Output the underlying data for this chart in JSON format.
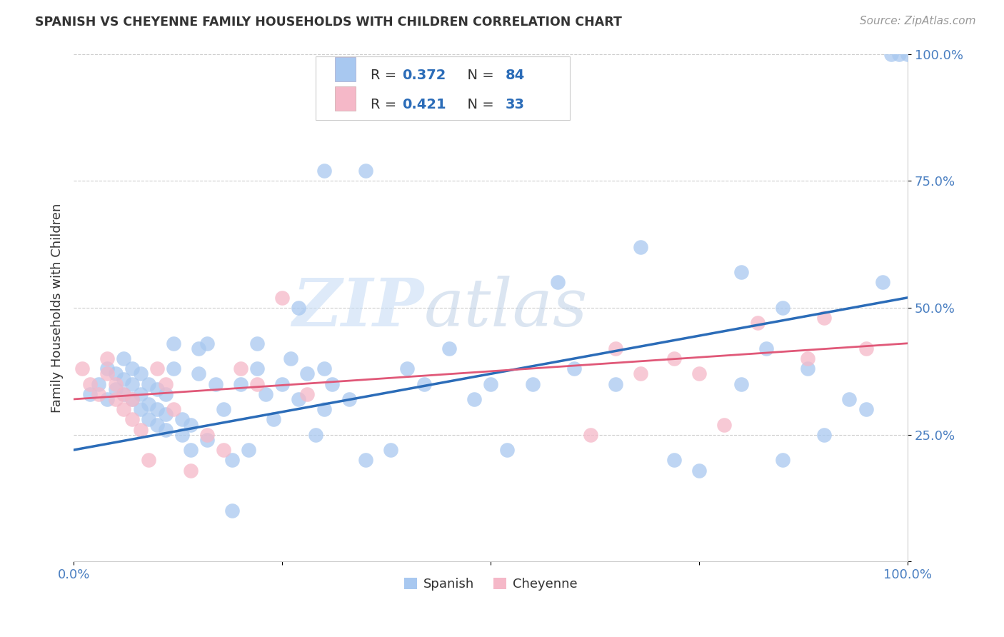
{
  "title": "SPANISH VS CHEYENNE FAMILY HOUSEHOLDS WITH CHILDREN CORRELATION CHART",
  "source": "Source: ZipAtlas.com",
  "ylabel": "Family Households with Children",
  "xlim": [
    0,
    1
  ],
  "ylim": [
    0,
    1
  ],
  "xticks": [
    0.0,
    0.25,
    0.5,
    0.75,
    1.0
  ],
  "xticklabels": [
    "0.0%",
    "",
    "",
    "",
    "100.0%"
  ],
  "yticks": [
    0.0,
    0.25,
    0.5,
    0.75,
    1.0
  ],
  "yticklabels": [
    "",
    "25.0%",
    "50.0%",
    "75.0%",
    "100.0%"
  ],
  "legend_r_spanish": "0.372",
  "legend_n_spanish": "84",
  "legend_r_cheyenne": "0.421",
  "legend_n_cheyenne": "33",
  "spanish_color": "#a8c8f0",
  "cheyenne_color": "#f5b8c8",
  "spanish_line_color": "#2b6cb8",
  "cheyenne_line_color": "#e05878",
  "watermark_zip": "ZIP",
  "watermark_atlas": "atlas",
  "title_color": "#333333",
  "legend_text_color": "#333333",
  "legend_value_color": "#2b6cb8",
  "tick_color": "#4a7fc1",
  "background_color": "#ffffff",
  "grid_color": "#cccccc",
  "spanish_scatter_x": [
    0.02,
    0.03,
    0.04,
    0.04,
    0.05,
    0.05,
    0.06,
    0.06,
    0.06,
    0.07,
    0.07,
    0.07,
    0.08,
    0.08,
    0.08,
    0.09,
    0.09,
    0.09,
    0.1,
    0.1,
    0.1,
    0.11,
    0.11,
    0.11,
    0.12,
    0.12,
    0.13,
    0.13,
    0.14,
    0.14,
    0.15,
    0.15,
    0.16,
    0.17,
    0.18,
    0.19,
    0.2,
    0.21,
    0.22,
    0.22,
    0.23,
    0.24,
    0.25,
    0.26,
    0.27,
    0.28,
    0.29,
    0.3,
    0.3,
    0.31,
    0.33,
    0.35,
    0.38,
    0.4,
    0.42,
    0.45,
    0.48,
    0.5,
    0.52,
    0.55,
    0.58,
    0.6,
    0.65,
    0.68,
    0.72,
    0.75,
    0.8,
    0.83,
    0.85,
    0.88,
    0.9,
    0.93,
    0.95,
    0.97,
    0.98,
    0.99,
    1.0,
    0.27,
    0.19,
    0.8,
    0.85,
    0.16,
    0.3,
    0.35
  ],
  "spanish_scatter_y": [
    0.33,
    0.35,
    0.32,
    0.38,
    0.34,
    0.37,
    0.33,
    0.36,
    0.4,
    0.32,
    0.35,
    0.38,
    0.3,
    0.33,
    0.37,
    0.28,
    0.31,
    0.35,
    0.27,
    0.3,
    0.34,
    0.26,
    0.29,
    0.33,
    0.38,
    0.43,
    0.25,
    0.28,
    0.22,
    0.27,
    0.37,
    0.42,
    0.24,
    0.35,
    0.3,
    0.2,
    0.35,
    0.22,
    0.38,
    0.43,
    0.33,
    0.28,
    0.35,
    0.4,
    0.32,
    0.37,
    0.25,
    0.3,
    0.38,
    0.35,
    0.32,
    0.2,
    0.22,
    0.38,
    0.35,
    0.42,
    0.32,
    0.35,
    0.22,
    0.35,
    0.55,
    0.38,
    0.35,
    0.62,
    0.2,
    0.18,
    0.57,
    0.42,
    0.5,
    0.38,
    0.25,
    0.32,
    0.3,
    0.55,
    1.0,
    1.0,
    1.0,
    0.5,
    0.1,
    0.35,
    0.2,
    0.43,
    0.77,
    0.77
  ],
  "cheyenne_scatter_x": [
    0.01,
    0.02,
    0.03,
    0.04,
    0.04,
    0.05,
    0.05,
    0.06,
    0.06,
    0.07,
    0.07,
    0.08,
    0.09,
    0.1,
    0.11,
    0.12,
    0.14,
    0.16,
    0.18,
    0.2,
    0.22,
    0.25,
    0.28,
    0.62,
    0.65,
    0.68,
    0.72,
    0.75,
    0.78,
    0.82,
    0.88,
    0.9,
    0.95
  ],
  "cheyenne_scatter_y": [
    0.38,
    0.35,
    0.33,
    0.37,
    0.4,
    0.32,
    0.35,
    0.3,
    0.33,
    0.28,
    0.32,
    0.26,
    0.2,
    0.38,
    0.35,
    0.3,
    0.18,
    0.25,
    0.22,
    0.38,
    0.35,
    0.52,
    0.33,
    0.25,
    0.42,
    0.37,
    0.4,
    0.37,
    0.27,
    0.47,
    0.4,
    0.48,
    0.42
  ],
  "spanish_trendline_x": [
    0.0,
    1.0
  ],
  "spanish_trendline_y": [
    0.22,
    0.52
  ],
  "cheyenne_trendline_x": [
    0.0,
    1.0
  ],
  "cheyenne_trendline_y": [
    0.32,
    0.43
  ]
}
